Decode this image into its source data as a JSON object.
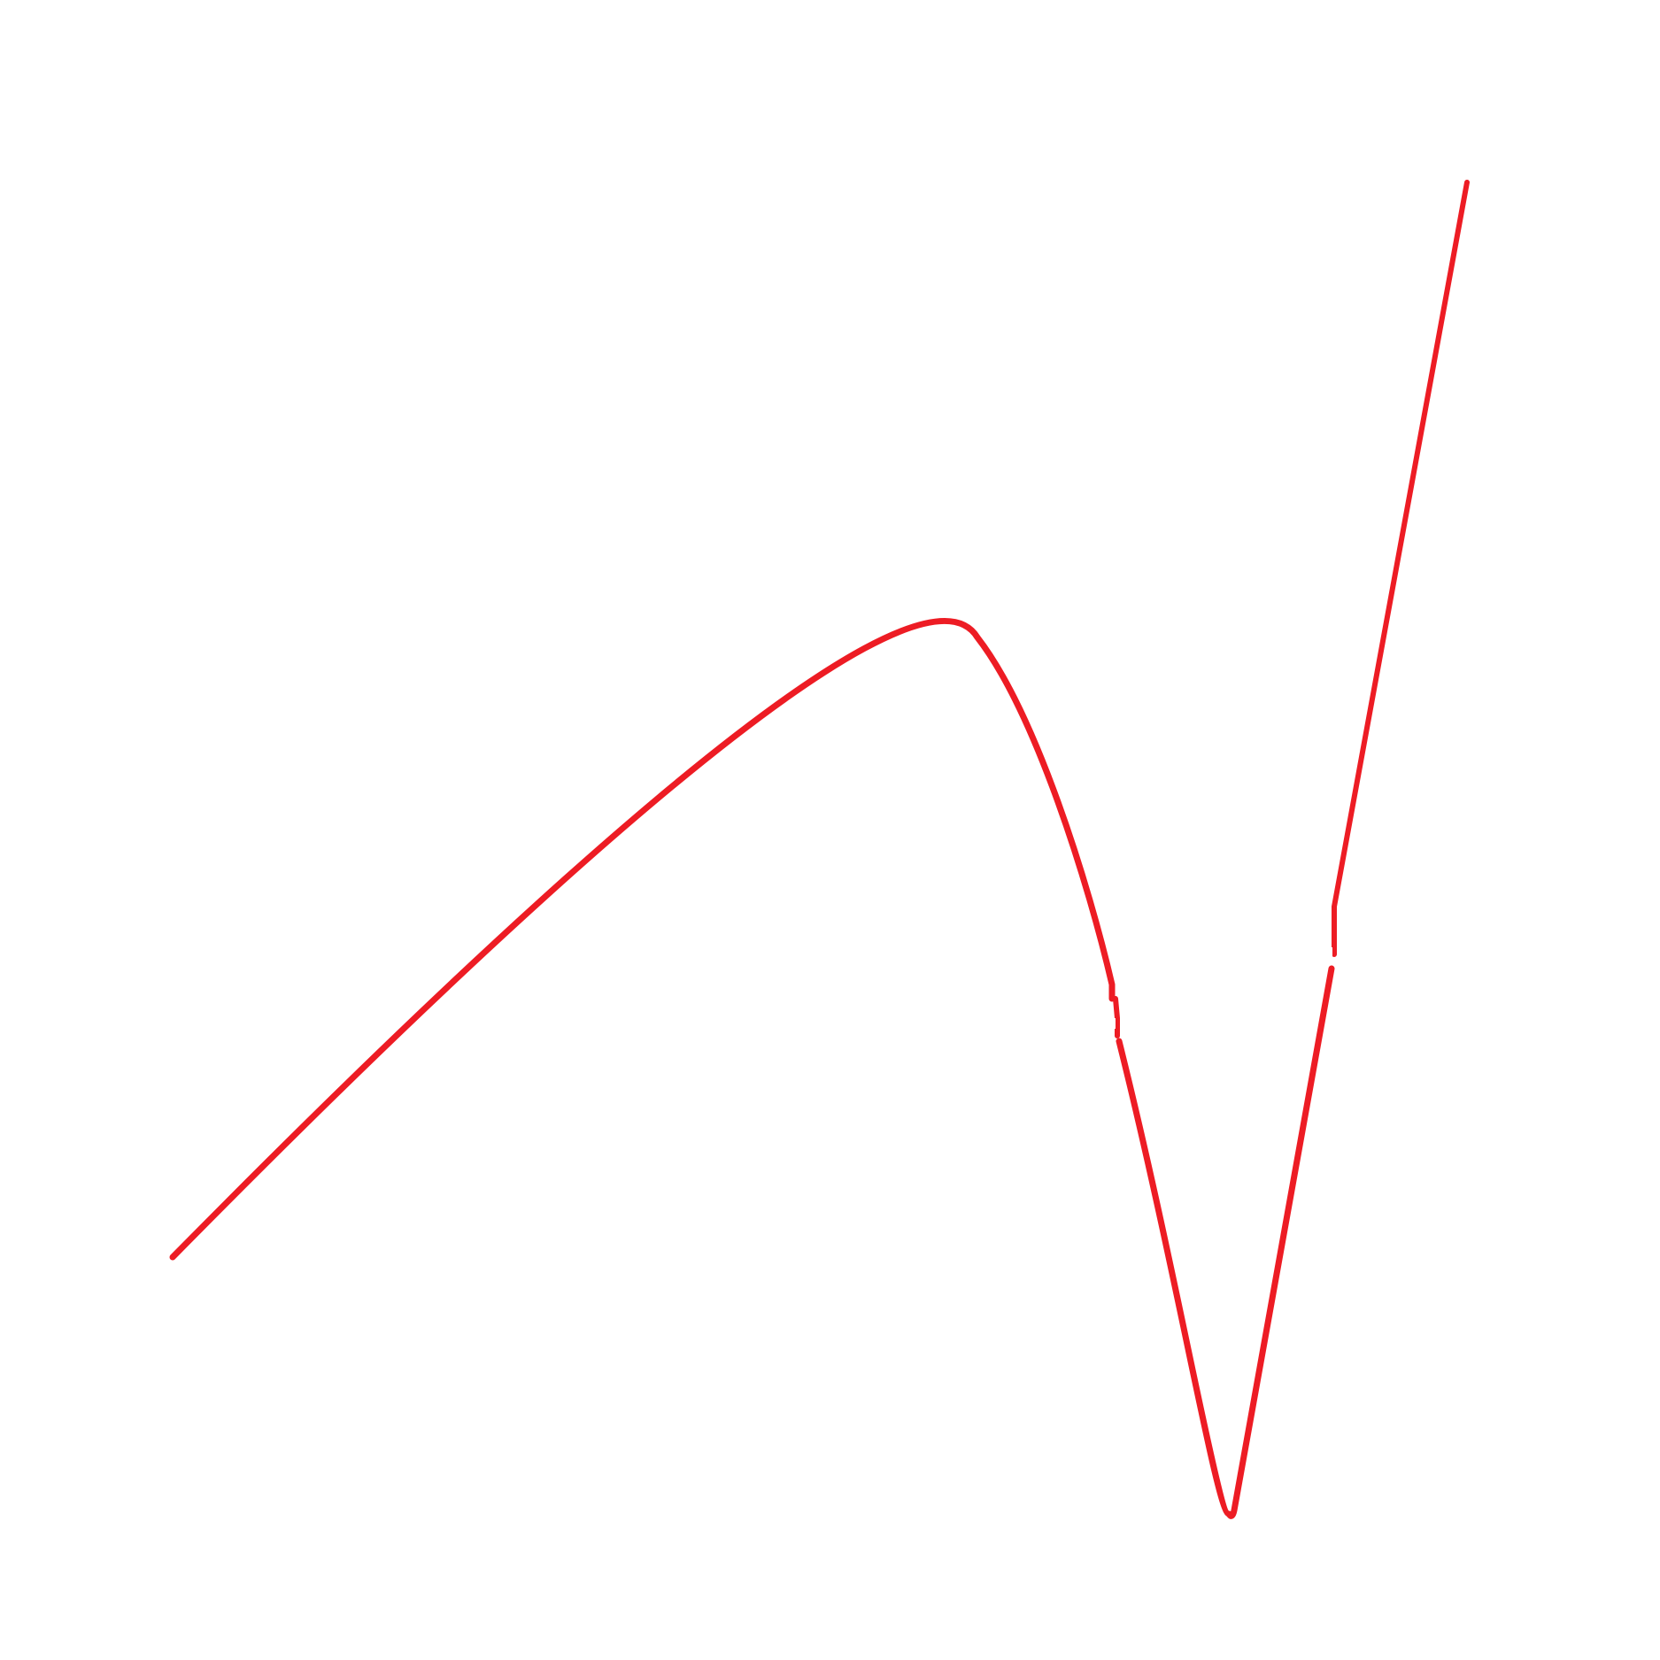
{
  "diagram": {
    "stroke_color": "#ED1C24",
    "background_color": "#FFFFFF",
    "description_of_marks": [
      {
        "name": "rising-arc-segment"
      },
      {
        "name": "falling-segment"
      },
      {
        "name": "valley-segment"
      },
      {
        "name": "right-rising-segment"
      }
    ]
  }
}
